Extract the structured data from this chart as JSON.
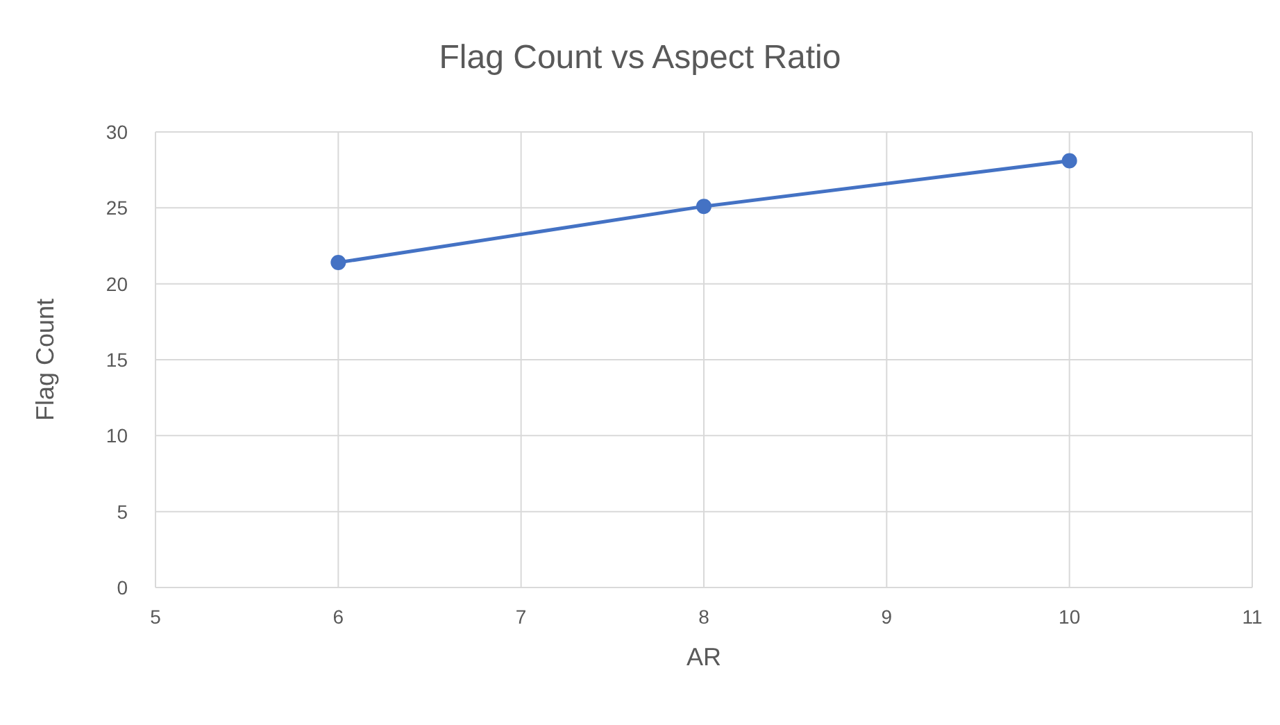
{
  "chart_data": {
    "type": "line",
    "title": "Flag Count vs Aspect Ratio",
    "xlabel": "AR",
    "ylabel": "Flag Count",
    "x": [
      6,
      8,
      10
    ],
    "series": [
      {
        "color": "#4472c4",
        "values": [
          21.4,
          25.1,
          28.1
        ]
      }
    ],
    "xlim": [
      5,
      11
    ],
    "xticks": [
      5,
      6,
      7,
      8,
      9,
      10,
      11
    ],
    "ylim": [
      0,
      30
    ],
    "yticks": [
      0,
      5,
      10,
      15,
      20,
      25,
      30
    ],
    "grid": true,
    "marker": "circle",
    "line_style": "solid",
    "legend": false
  }
}
